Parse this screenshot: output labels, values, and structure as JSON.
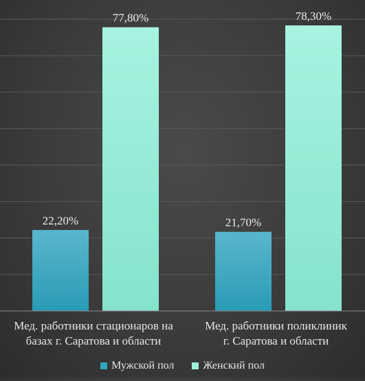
{
  "chart_data": {
    "type": "bar",
    "categories": [
      "Мед. работники стационаров на базах г. Саратова и области",
      "Мед. работники поликлиник г. Саратова и области"
    ],
    "series": [
      {
        "name": "Мужской пол",
        "values": [
          22.2,
          21.7
        ],
        "labels": [
          "22,20%",
          "21,70%"
        ],
        "color": "#35a4be"
      },
      {
        "name": "Женский пол",
        "values": [
          77.8,
          78.3
        ],
        "labels": [
          "77,80%",
          "78,30%"
        ],
        "color": "#9ff0da"
      }
    ],
    "ylim": [
      0,
      80
    ],
    "grid": true,
    "legend_position": "bottom"
  },
  "category_lines": [
    [
      "Мед. работники стационаров на",
      "базах г. Саратова и области"
    ],
    [
      "Мед. работники поликлиник",
      "г. Саратова и области"
    ]
  ]
}
